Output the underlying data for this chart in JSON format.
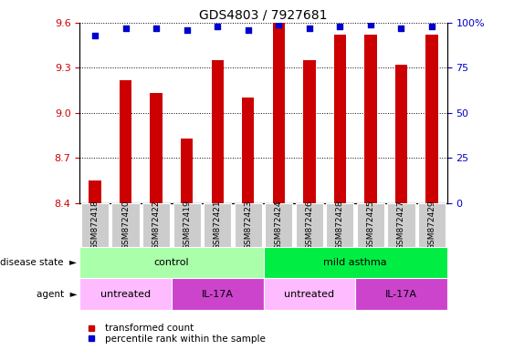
{
  "title": "GDS4803 / 7927681",
  "samples": [
    "GSM872418",
    "GSM872420",
    "GSM872422",
    "GSM872419",
    "GSM872421",
    "GSM872423",
    "GSM872424",
    "GSM872426",
    "GSM872428",
    "GSM872425",
    "GSM872427",
    "GSM872429"
  ],
  "transformed_counts": [
    8.55,
    9.22,
    9.13,
    8.83,
    9.35,
    9.1,
    9.6,
    9.35,
    9.52,
    9.52,
    9.32,
    9.52
  ],
  "percentile_ranks": [
    93,
    97,
    97,
    96,
    98,
    96,
    99,
    97,
    98,
    99,
    97,
    98
  ],
  "ylim_left": [
    8.4,
    9.6
  ],
  "ylim_right": [
    0,
    100
  ],
  "yticks_left": [
    8.4,
    8.7,
    9.0,
    9.3,
    9.6
  ],
  "yticks_right": [
    0,
    25,
    50,
    75,
    100
  ],
  "bar_color": "#cc0000",
  "dot_color": "#0000cc",
  "disease_state_groups": [
    {
      "label": "control",
      "start": 0,
      "end": 6,
      "color": "#aaffaa"
    },
    {
      "label": "mild asthma",
      "start": 6,
      "end": 12,
      "color": "#00ee44"
    }
  ],
  "agent_groups": [
    {
      "label": "untreated",
      "start": 0,
      "end": 3,
      "color": "#ffbbff"
    },
    {
      "label": "IL-17A",
      "start": 3,
      "end": 6,
      "color": "#cc44cc"
    },
    {
      "label": "untreated",
      "start": 6,
      "end": 9,
      "color": "#ffbbff"
    },
    {
      "label": "IL-17A",
      "start": 9,
      "end": 12,
      "color": "#cc44cc"
    }
  ],
  "legend_items": [
    {
      "label": "transformed count",
      "color": "#cc0000"
    },
    {
      "label": "percentile rank within the sample",
      "color": "#0000cc"
    }
  ],
  "ylabel_left_color": "#cc0000",
  "ylabel_right_color": "#0000cc",
  "tick_bg_color": "#cccccc",
  "bar_width": 0.4
}
